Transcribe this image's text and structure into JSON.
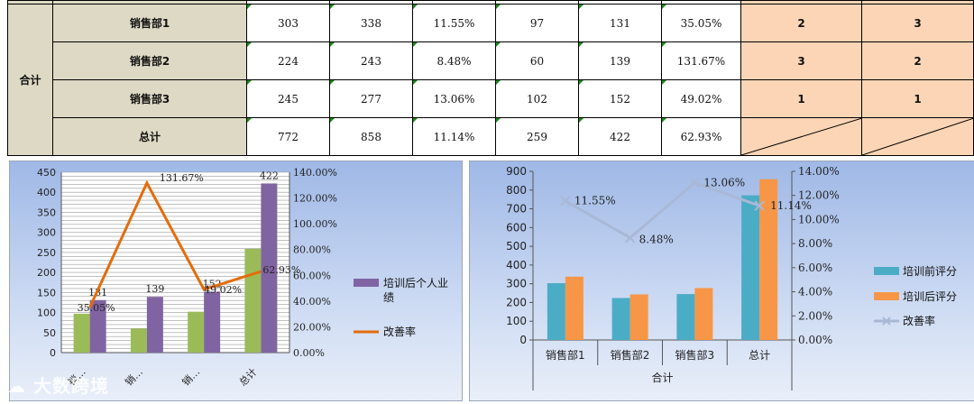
{
  "table": {
    "group_label": "合计",
    "rows": [
      {
        "name": "销售部1",
        "values": [
          "303",
          "338",
          "11.55%",
          "97",
          "131",
          "35.05%"
        ],
        "rank1": "2",
        "rank2": "3"
      },
      {
        "name": "销售部2",
        "values": [
          "224",
          "243",
          "8.48%",
          "60",
          "139",
          "131.67%"
        ],
        "rank1": "3",
        "rank2": "2"
      },
      {
        "name": "销售部3",
        "values": [
          "245",
          "277",
          "13.06%",
          "102",
          "152",
          "49.02%"
        ],
        "rank1": "1",
        "rank2": "1"
      },
      {
        "name": "总计",
        "values": [
          "772",
          "858",
          "11.14%",
          "259",
          "422",
          "62.93%"
        ],
        "rank1": "",
        "rank2": ""
      }
    ]
  },
  "watermark": "大数跨境",
  "colors": {
    "green_bar": "#9bbb59",
    "purple_bar": "#8064a2",
    "orange_line": "#e46c0a",
    "teal_bar": "#4bacc6",
    "orange_bar": "#f79646",
    "grey_line": "#a9b8d6"
  },
  "chart_data": [
    {
      "type": "bar",
      "categories": [
        "销售部1",
        "销售部2",
        "销售部3",
        "总计"
      ],
      "category_labels": [
        "销…",
        "销…",
        "销…",
        "总计"
      ],
      "series": [
        {
          "values": [
            97,
            60,
            102,
            259
          ],
          "axis": "left"
        },
        {
          "name": "培训后个人业绩",
          "values": [
            131,
            139,
            152,
            422
          ],
          "axis": "left",
          "labels": [
            "131",
            "139",
            "152",
            "422"
          ]
        },
        {
          "name": "改善率",
          "type": "line",
          "values": [
            35.05,
            131.67,
            49.02,
            62.93
          ],
          "axis": "right",
          "labels": [
            "35.05%",
            "131.67%",
            "49.02%",
            "62.93%"
          ]
        }
      ],
      "ylim": [
        0,
        450
      ],
      "yticks": [
        "0",
        "50",
        "100",
        "150",
        "200",
        "250",
        "300",
        "350",
        "400",
        "450"
      ],
      "y2lim": [
        0,
        140
      ],
      "y2ticks": [
        "0.00%",
        "20.00%",
        "40.00%",
        "60.00%",
        "80.00%",
        "100.00%",
        "120.00%",
        "140.00%"
      ],
      "grid": true,
      "legend": "right"
    },
    {
      "type": "bar",
      "categories": [
        "销售部1",
        "销售部2",
        "销售部3",
        "总计"
      ],
      "group_label": "合计",
      "series": [
        {
          "name": "培训前评分",
          "values": [
            303,
            224,
            245,
            772
          ],
          "axis": "left"
        },
        {
          "name": "培训后评分",
          "values": [
            338,
            243,
            277,
            858
          ],
          "axis": "left"
        },
        {
          "name": "改善率",
          "type": "line",
          "values": [
            11.55,
            8.48,
            13.06,
            11.14
          ],
          "axis": "right",
          "labels": [
            "11.55%",
            "8.48%",
            "13.06%",
            "11.14%"
          ]
        }
      ],
      "ylim": [
        0,
        900
      ],
      "yticks": [
        "0",
        "100",
        "200",
        "300",
        "400",
        "500",
        "600",
        "700",
        "800",
        "900"
      ],
      "y2lim": [
        0,
        14
      ],
      "y2ticks": [
        "0.00%",
        "2.00%",
        "4.00%",
        "6.00%",
        "8.00%",
        "10.00%",
        "12.00%",
        "14.00%"
      ],
      "grid": false,
      "legend": "right"
    }
  ]
}
